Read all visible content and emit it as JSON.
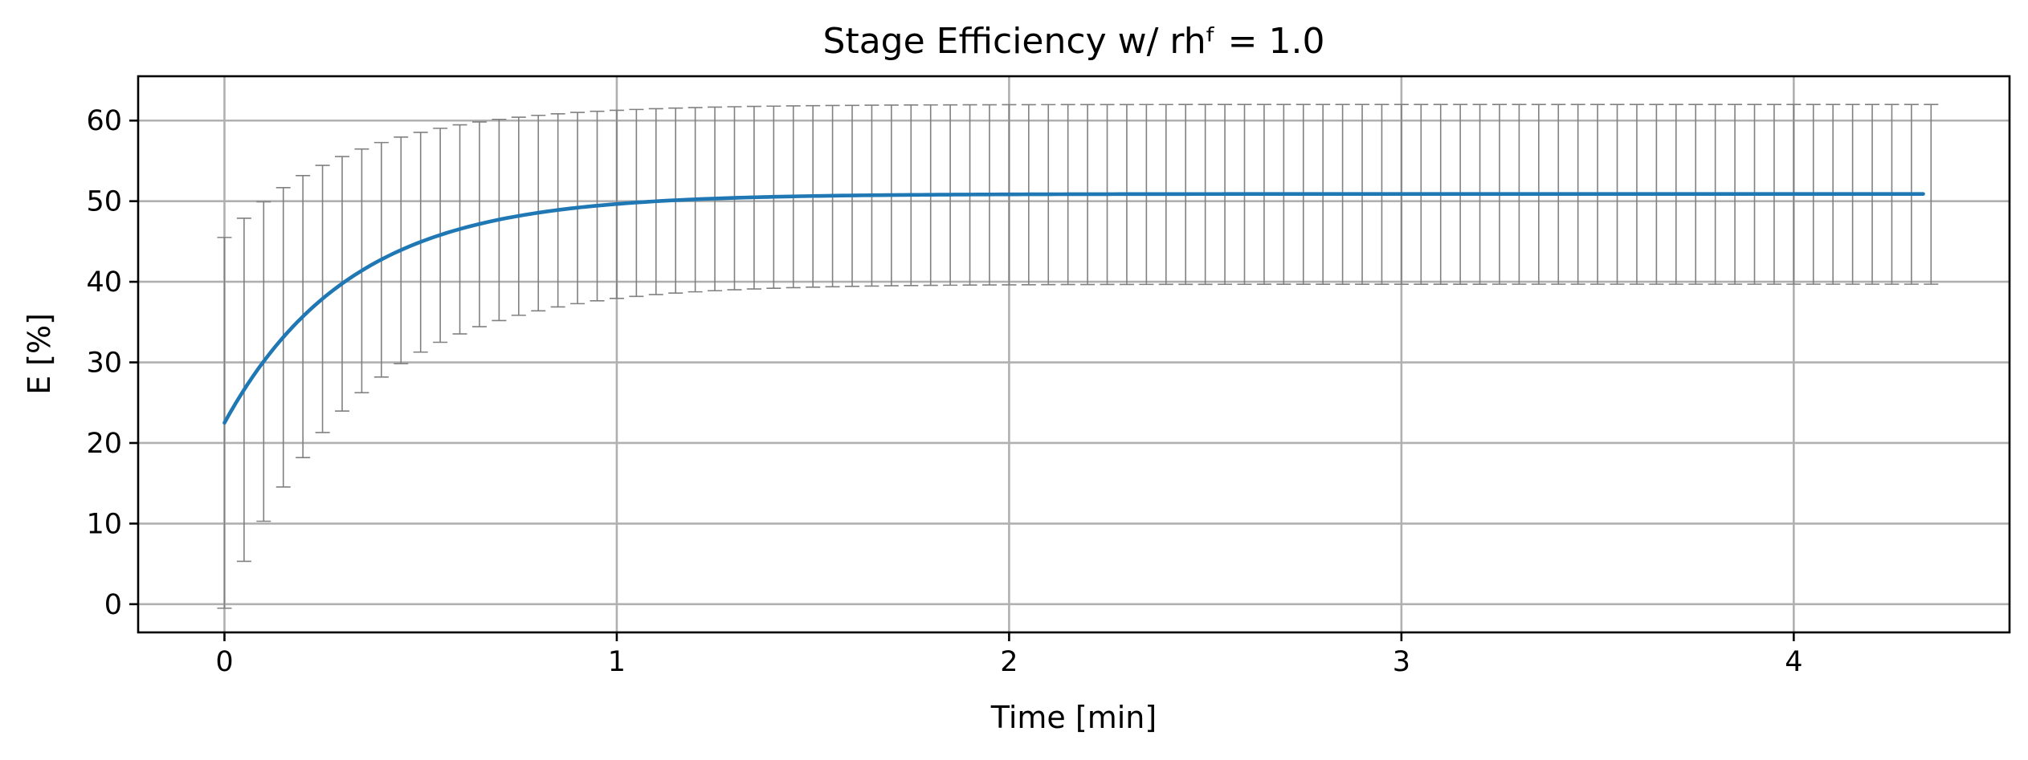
{
  "chart_data": {
    "type": "line",
    "title": "Stage Efficiency w/ rhᶠ = 1.0",
    "xlabel": "Time [min]",
    "ylabel": "E [%]",
    "xlim": [
      -0.22,
      4.55
    ],
    "ylim": [
      -3.5,
      65.5
    ],
    "xticks": [
      0,
      1,
      2,
      3,
      4
    ],
    "yticks": [
      0,
      10,
      20,
      30,
      40,
      50,
      60
    ],
    "grid": true,
    "legend": "none",
    "colors": {
      "line": "#1f77b4",
      "errorbar": "#808080",
      "grid": "#b0b0b0"
    },
    "series": [
      {
        "model": "exponential rise to steady state, E(t) = E_inf - (E_inf - E_0) * exp(-t / tau)",
        "E_0": 22.5,
        "E_inf": 50.9,
        "tau_min": 0.32,
        "t_start": 0,
        "t_end": 4.33,
        "errorbar": {
          "step_min": 0.05,
          "lower_start": -0.5,
          "lower_end": 39.7,
          "upper_start": 45.5,
          "upper_end": 62.0
        }
      }
    ]
  }
}
